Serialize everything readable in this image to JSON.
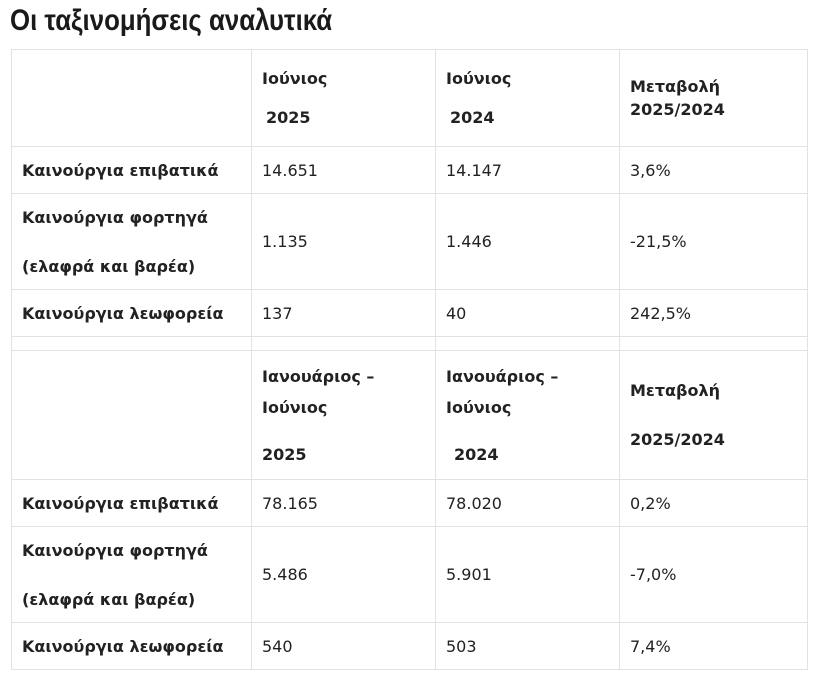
{
  "title": "Οι ταξινομήσεις αναλυτικά",
  "section1": {
    "headers": {
      "col2": [
        "Ιούνιος",
        "2025"
      ],
      "col3": [
        "Ιούνιος",
        "2024"
      ],
      "col4": [
        "Μεταβολή",
        "2025/2024"
      ]
    },
    "rows": [
      {
        "label": [
          "Καινούργια επιβατικά"
        ],
        "v2025": "14.651",
        "v2024": "14.147",
        "change": "3,6%"
      },
      {
        "label": [
          "Καινούργια φορτηγά",
          "(ελαφρά και βαρέα)"
        ],
        "v2025": "1.135",
        "v2024": "1.446",
        "change": "-21,5%"
      },
      {
        "label": [
          "Καινούργια λεωφορεία"
        ],
        "v2025": "137",
        "v2024": "40",
        "change": "242,5%"
      }
    ]
  },
  "section2": {
    "headers": {
      "col2": [
        "Ιανουάριος –",
        "Ιούνιος",
        "2025"
      ],
      "col3": [
        "Ιανουάριος –",
        "Ιούνιος",
        "2024"
      ],
      "col4": [
        "Μεταβολή",
        "2025/2024"
      ]
    },
    "rows": [
      {
        "label": [
          "Καινούργια επιβατικά"
        ],
        "v2025": "78.165",
        "v2024": "78.020",
        "change": "0,2%"
      },
      {
        "label": [
          "Καινούργια φορτηγά",
          "(ελαφρά και βαρέα)"
        ],
        "v2025": "5.486",
        "v2024": "5.901",
        "change": "-7,0%"
      },
      {
        "label": [
          "Καινούργια λεωφορεία"
        ],
        "v2025": "540",
        "v2024": "503",
        "change": "7,4%"
      }
    ]
  }
}
